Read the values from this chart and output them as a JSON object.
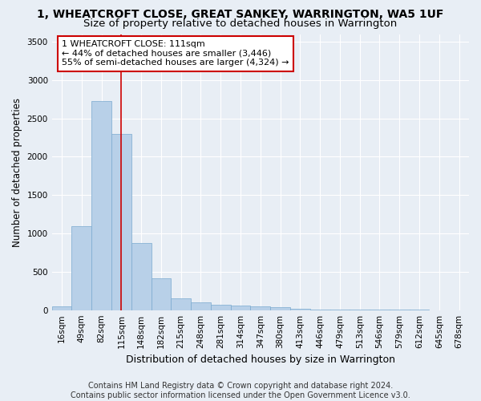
{
  "title": "1, WHEATCROFT CLOSE, GREAT SANKEY, WARRINGTON, WA5 1UF",
  "subtitle": "Size of property relative to detached houses in Warrington",
  "xlabel": "Distribution of detached houses by size in Warrington",
  "ylabel": "Number of detached properties",
  "footer_line1": "Contains HM Land Registry data © Crown copyright and database right 2024.",
  "footer_line2": "Contains public sector information licensed under the Open Government Licence v3.0.",
  "categories": [
    "16sqm",
    "49sqm",
    "82sqm",
    "115sqm",
    "148sqm",
    "182sqm",
    "215sqm",
    "248sqm",
    "281sqm",
    "314sqm",
    "347sqm",
    "380sqm",
    "413sqm",
    "446sqm",
    "479sqm",
    "513sqm",
    "546sqm",
    "579sqm",
    "612sqm",
    "645sqm",
    "678sqm"
  ],
  "values": [
    50,
    1090,
    2730,
    2300,
    880,
    415,
    155,
    100,
    75,
    55,
    45,
    35,
    20,
    10,
    5,
    5,
    3,
    2,
    2,
    1,
    1
  ],
  "bar_color": "#b8d0e8",
  "bar_edge_color": "#7aaacf",
  "vline_x_index": 3,
  "vline_color": "#cc0000",
  "ylim": [
    0,
    3600
  ],
  "yticks": [
    0,
    500,
    1000,
    1500,
    2000,
    2500,
    3000,
    3500
  ],
  "annotation_line1": "1 WHEATCROFT CLOSE: 111sqm",
  "annotation_line2": "← 44% of detached houses are smaller (3,446)",
  "annotation_line3": "55% of semi-detached houses are larger (4,324) →",
  "annotation_box_color": "#ffffff",
  "annotation_box_edge": "#cc0000",
  "bg_color": "#e8eef5",
  "plot_bg_color": "#e8eef5",
  "grid_color": "#ffffff",
  "title_fontsize": 10,
  "subtitle_fontsize": 9.5,
  "ylabel_fontsize": 8.5,
  "xlabel_fontsize": 9,
  "tick_fontsize": 7.5,
  "footer_fontsize": 7,
  "annotation_fontsize": 8
}
